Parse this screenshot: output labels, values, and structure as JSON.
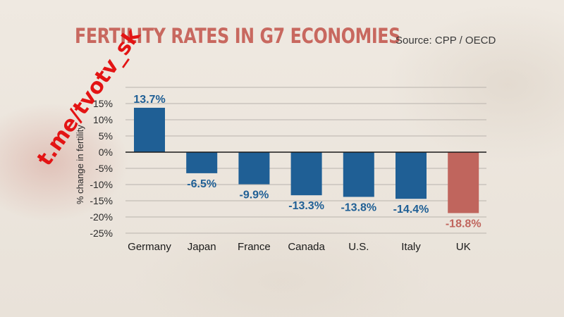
{
  "watermark": "t.me/tvotv_sk",
  "source": "Source: CPP / OECD",
  "chart_data": {
    "type": "bar",
    "title": "FERTILITY RATES IN G7 ECONOMIES",
    "ylabel": "% change in fertility",
    "xlabel": "",
    "categories": [
      "Germany",
      "Japan",
      "France",
      "Canada",
      "U.S.",
      "Italy",
      "UK"
    ],
    "values": [
      13.7,
      -6.5,
      -9.9,
      -13.3,
      -13.8,
      -14.4,
      -18.8
    ],
    "value_labels": [
      "13.7%",
      "-6.5%",
      "-9.9%",
      "-13.3%",
      "-13.8%",
      "-14.4%",
      "-18.8%"
    ],
    "ylim": [
      -25,
      20
    ],
    "yticks": [
      -25,
      -20,
      -15,
      -10,
      -5,
      0,
      5,
      10,
      15,
      20
    ],
    "ytick_labels": [
      "-25%",
      "-20%",
      "-15%",
      "-10%",
      "-5%",
      "0%",
      "5%",
      "10%",
      "15%",
      ""
    ],
    "grid": true,
    "colors": {
      "bar": "#1f5f95",
      "highlight_bar": "#c0655d",
      "label": "#1f5f95",
      "highlight_label": "#c0655d",
      "title": "#c8685f",
      "grid": "#b9b3ad"
    },
    "highlight_category": "UK"
  }
}
